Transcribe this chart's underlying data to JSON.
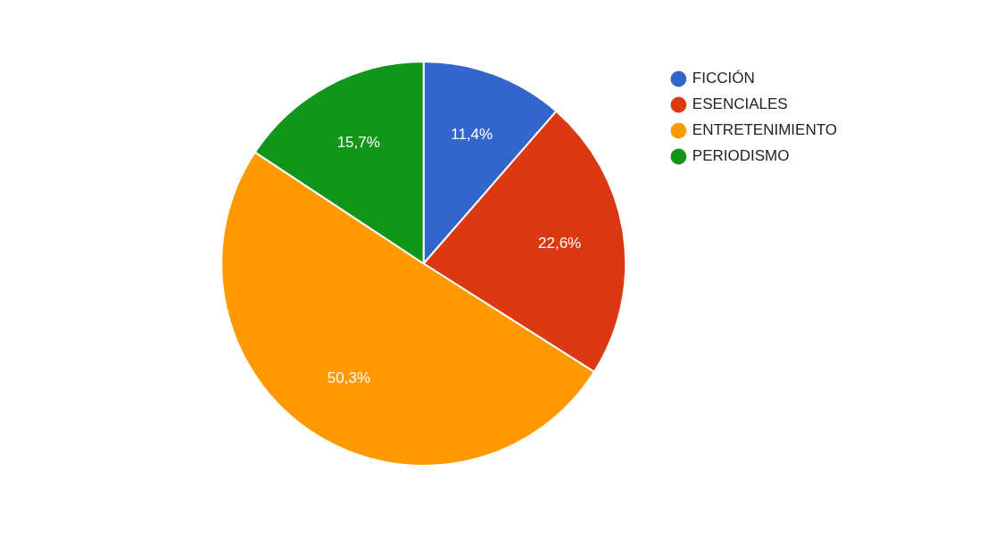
{
  "chart_data": {
    "type": "pie",
    "categories": [
      "FICCIÓN",
      "ESENCIALES",
      "ENTRETENIMIENTO",
      "PERIODISMO"
    ],
    "values": [
      11.4,
      22.6,
      50.3,
      15.7
    ],
    "colors": [
      "#3366cc",
      "#dc3912",
      "#ff9900",
      "#109618"
    ],
    "value_labels": [
      "11,4%",
      "22,6%",
      "50,3%",
      "15,7%"
    ],
    "legend": "top right"
  }
}
